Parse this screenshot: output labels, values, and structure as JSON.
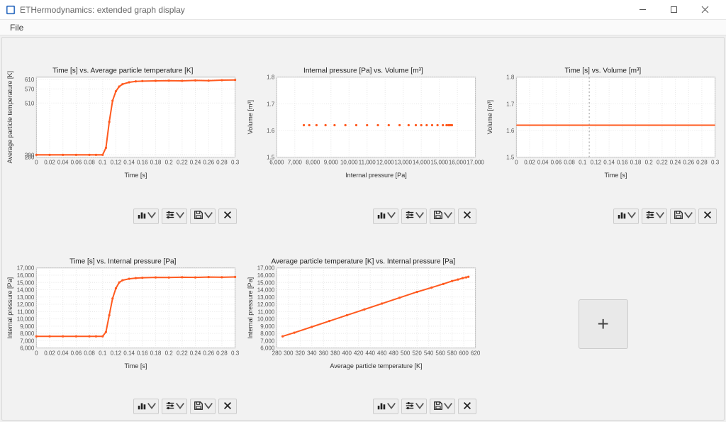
{
  "window": {
    "title": "ETHermodynamics: extended graph display"
  },
  "menu": {
    "file": "File"
  },
  "colors": {
    "series": "#ff5a1f",
    "grid": "#e6e6e6",
    "axis": "#bbbbbb",
    "bg": "#ffffff",
    "frame": "#f0f0f0"
  },
  "charts": [
    {
      "title": "Time [s] vs. Average particle temperature [K]",
      "xlabel": "Time [s]",
      "ylabel": "Average particle temperature [K]",
      "xlim": [
        0,
        0.3
      ],
      "ylim": [
        280,
        620
      ],
      "xticks": [
        0,
        0.02,
        0.04,
        0.06,
        0.08,
        0.1,
        0.12,
        0.14,
        0.16,
        0.18,
        0.2,
        0.22,
        0.24,
        0.26,
        0.28,
        0.3
      ],
      "yticks": [
        280,
        290,
        510,
        570,
        610
      ],
      "yticks_full": [
        280,
        290,
        510,
        570,
        610
      ],
      "series": [
        [
          0,
          290
        ],
        [
          0.02,
          290
        ],
        [
          0.04,
          290
        ],
        [
          0.06,
          290
        ],
        [
          0.08,
          290
        ],
        [
          0.09,
          290
        ],
        [
          0.1,
          290
        ],
        [
          0.105,
          320
        ],
        [
          0.11,
          430
        ],
        [
          0.115,
          520
        ],
        [
          0.12,
          560
        ],
        [
          0.125,
          580
        ],
        [
          0.13,
          590
        ],
        [
          0.14,
          598
        ],
        [
          0.15,
          602
        ],
        [
          0.16,
          603
        ],
        [
          0.18,
          604
        ],
        [
          0.2,
          605
        ],
        [
          0.22,
          604
        ],
        [
          0.24,
          606
        ],
        [
          0.26,
          605
        ],
        [
          0.28,
          607
        ],
        [
          0.3,
          608
        ]
      ],
      "markers": true
    },
    {
      "title": "Internal pressure [Pa] vs. Volume [m³]",
      "xlabel": "Internal pressure [Pa]",
      "ylabel": "Volume [m³]",
      "xlim": [
        6000,
        17000
      ],
      "ylim": [
        1.5,
        1.8
      ],
      "xticks": [
        6000,
        7000,
        8000,
        9000,
        10000,
        11000,
        12000,
        13000,
        14000,
        15000,
        16000,
        17000
      ],
      "yticks": [
        1.5,
        1.6,
        1.7,
        1.8
      ],
      "series": [
        [
          7500,
          1.62
        ],
        [
          7800,
          1.62
        ],
        [
          8200,
          1.62
        ],
        [
          8700,
          1.62
        ],
        [
          9200,
          1.62
        ],
        [
          9800,
          1.62
        ],
        [
          10400,
          1.62
        ],
        [
          11000,
          1.62
        ],
        [
          11600,
          1.62
        ],
        [
          12200,
          1.62
        ],
        [
          12800,
          1.62
        ],
        [
          13300,
          1.62
        ],
        [
          13700,
          1.62
        ],
        [
          14000,
          1.62
        ],
        [
          14300,
          1.62
        ],
        [
          14600,
          1.62
        ],
        [
          14900,
          1.62
        ],
        [
          15200,
          1.62
        ],
        [
          15400,
          1.62
        ],
        [
          15500,
          1.62
        ],
        [
          15550,
          1.62
        ],
        [
          15600,
          1.62
        ],
        [
          15650,
          1.62
        ],
        [
          15700,
          1.62
        ]
      ],
      "markers": true,
      "markersOnly": true
    },
    {
      "title": "Time [s] vs. Volume [m³]",
      "xlabel": "Time [s]",
      "ylabel": "Volume [m³]",
      "xlim": [
        0,
        0.3
      ],
      "ylim": [
        1.5,
        1.8
      ],
      "xticks": [
        0,
        0.02,
        0.04,
        0.06,
        0.08,
        0.1,
        0.12,
        0.14,
        0.16,
        0.18,
        0.2,
        0.22,
        0.24,
        0.26,
        0.28,
        0.3
      ],
      "yticks": [
        1.5,
        1.6,
        1.7,
        1.8
      ],
      "series": [
        [
          0,
          1.62
        ],
        [
          0.05,
          1.62
        ],
        [
          0.1,
          1.62
        ],
        [
          0.15,
          1.62
        ],
        [
          0.2,
          1.62
        ],
        [
          0.25,
          1.62
        ],
        [
          0.3,
          1.62
        ]
      ],
      "markers": false,
      "vline_x": 0.11
    },
    {
      "title": "Time [s] vs. Internal pressure [Pa]",
      "xlabel": "Time [s]",
      "ylabel": "Internal pressure [Pa]",
      "xlim": [
        0,
        0.3
      ],
      "ylim": [
        6000,
        17000
      ],
      "xticks": [
        0,
        0.02,
        0.04,
        0.06,
        0.08,
        0.1,
        0.12,
        0.14,
        0.16,
        0.18,
        0.2,
        0.22,
        0.24,
        0.26,
        0.28,
        0.3
      ],
      "yticks": [
        6000,
        7000,
        8000,
        9000,
        10000,
        11000,
        12000,
        13000,
        14000,
        15000,
        16000,
        17000
      ],
      "series": [
        [
          0,
          7600
        ],
        [
          0.02,
          7600
        ],
        [
          0.04,
          7600
        ],
        [
          0.06,
          7600
        ],
        [
          0.08,
          7600
        ],
        [
          0.09,
          7600
        ],
        [
          0.1,
          7600
        ],
        [
          0.105,
          8200
        ],
        [
          0.11,
          10500
        ],
        [
          0.115,
          12800
        ],
        [
          0.12,
          14200
        ],
        [
          0.125,
          15000
        ],
        [
          0.13,
          15300
        ],
        [
          0.14,
          15500
        ],
        [
          0.15,
          15600
        ],
        [
          0.16,
          15650
        ],
        [
          0.18,
          15700
        ],
        [
          0.2,
          15680
        ],
        [
          0.22,
          15720
        ],
        [
          0.24,
          15700
        ],
        [
          0.26,
          15740
        ],
        [
          0.28,
          15720
        ],
        [
          0.3,
          15760
        ]
      ],
      "markers": true
    },
    {
      "title": "Average particle temperature [K] vs. Internal pressure [Pa]",
      "xlabel": "Average particle temperature [K]",
      "ylabel": "Internal pressure [Pa]",
      "xlim": [
        280,
        620
      ],
      "ylim": [
        6000,
        17000
      ],
      "xticks": [
        280,
        300,
        320,
        340,
        360,
        380,
        400,
        420,
        440,
        460,
        480,
        500,
        520,
        540,
        560,
        580,
        600,
        620
      ],
      "yticks": [
        6000,
        7000,
        8000,
        9000,
        10000,
        11000,
        12000,
        13000,
        14000,
        15000,
        16000,
        17000
      ],
      "series": [
        [
          290,
          7600
        ],
        [
          310,
          8100
        ],
        [
          340,
          8900
        ],
        [
          370,
          9700
        ],
        [
          400,
          10500
        ],
        [
          430,
          11300
        ],
        [
          460,
          12100
        ],
        [
          490,
          12900
        ],
        [
          520,
          13700
        ],
        [
          545,
          14300
        ],
        [
          565,
          14800
        ],
        [
          580,
          15200
        ],
        [
          590,
          15400
        ],
        [
          598,
          15600
        ],
        [
          604,
          15700
        ],
        [
          608,
          15780
        ]
      ],
      "markers": true
    }
  ],
  "add_label": "+"
}
